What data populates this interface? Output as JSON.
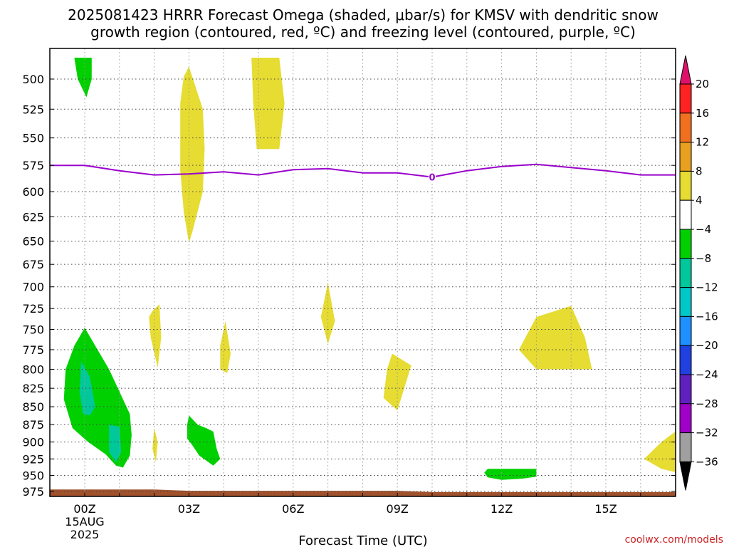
{
  "chart_data": {
    "type": "contour",
    "title_line1": "2025081423 HRRR Forecast Omega (shaded, μbar/s) for KMSV with dendritic snow",
    "title_line2": "growth region (contoured, red, ºC) and freezing level (contoured, purple, ºC)",
    "xlabel": "Forecast Time (UTC)",
    "credit": "coolwx.com/models",
    "x_ticks": [
      {
        "hour": 0,
        "label": "00Z",
        "sub1": "15AUG",
        "sub2": "2025"
      },
      {
        "hour": 3,
        "label": "03Z"
      },
      {
        "hour": 6,
        "label": "06Z"
      },
      {
        "hour": 9,
        "label": "09Z"
      },
      {
        "hour": 12,
        "label": "12Z"
      },
      {
        "hour": 15,
        "label": "15Z"
      }
    ],
    "xlim": [
      -1,
      17
    ],
    "ylim": [
      480,
      980
    ],
    "y_ticks": [
      500,
      525,
      550,
      575,
      600,
      625,
      650,
      675,
      700,
      725,
      750,
      775,
      800,
      825,
      850,
      875,
      900,
      925,
      950,
      975
    ],
    "grid": true,
    "freezing_level": {
      "color": "#9900cc",
      "label": "0",
      "label_hour": 10,
      "points": [
        [
          -1,
          575
        ],
        [
          0,
          575
        ],
        [
          1,
          580
        ],
        [
          2,
          584
        ],
        [
          3,
          583
        ],
        [
          4,
          581
        ],
        [
          5,
          584
        ],
        [
          6,
          579
        ],
        [
          7,
          578
        ],
        [
          8,
          582
        ],
        [
          9,
          582
        ],
        [
          10,
          586
        ],
        [
          11,
          580
        ],
        [
          12,
          576
        ],
        [
          13,
          574
        ],
        [
          14,
          577
        ],
        [
          15,
          580
        ],
        [
          16,
          584
        ],
        [
          17,
          584
        ]
      ]
    },
    "terrain": {
      "color": "#a0522d",
      "points": [
        [
          -1,
          972
        ],
        [
          2,
          972
        ],
        [
          3,
          974
        ],
        [
          9,
          974
        ],
        [
          10,
          976
        ],
        [
          17,
          976
        ]
      ]
    },
    "shaded_regions": [
      {
        "color": "#e6dc32",
        "points": [
          [
            4.8,
            483
          ],
          [
            5.6,
            483
          ],
          [
            5.75,
            520
          ],
          [
            5.6,
            560
          ],
          [
            4.95,
            560
          ],
          [
            4.85,
            520
          ]
        ]
      },
      {
        "color": "#e6dc32",
        "points": [
          [
            3.0,
            490
          ],
          [
            3.4,
            525
          ],
          [
            3.45,
            560
          ],
          [
            3.4,
            600
          ],
          [
            3.1,
            640
          ],
          [
            3.0,
            652
          ],
          [
            2.85,
            620
          ],
          [
            2.75,
            580
          ],
          [
            2.75,
            520
          ],
          [
            2.85,
            498
          ]
        ]
      },
      {
        "color": "#e6dc32",
        "points": [
          [
            1.95,
            728
          ],
          [
            2.15,
            720
          ],
          [
            2.2,
            760
          ],
          [
            2.1,
            798
          ],
          [
            1.9,
            760
          ],
          [
            1.85,
            735
          ]
        ]
      },
      {
        "color": "#e6dc32",
        "points": [
          [
            4.05,
            740
          ],
          [
            4.2,
            780
          ],
          [
            4.1,
            805
          ],
          [
            3.9,
            800
          ],
          [
            3.9,
            770
          ]
        ]
      },
      {
        "color": "#e6dc32",
        "points": [
          [
            7.0,
            695
          ],
          [
            7.2,
            740
          ],
          [
            7.0,
            768
          ],
          [
            6.8,
            735
          ]
        ]
      },
      {
        "color": "#e6dc32",
        "points": [
          [
            2.0,
            880
          ],
          [
            2.1,
            900
          ],
          [
            2.05,
            930
          ],
          [
            1.95,
            910
          ]
        ]
      },
      {
        "color": "#e6dc32",
        "points": [
          [
            8.85,
            780
          ],
          [
            9.4,
            795
          ],
          [
            9.0,
            855
          ],
          [
            8.6,
            838
          ],
          [
            8.7,
            800
          ]
        ]
      },
      {
        "color": "#e6dc32",
        "points": [
          [
            13.0,
            735
          ],
          [
            14.0,
            722
          ],
          [
            14.4,
            760
          ],
          [
            14.6,
            800
          ],
          [
            13.0,
            800
          ],
          [
            12.5,
            775
          ]
        ]
      },
      {
        "color": "#e6dc32",
        "points": [
          [
            17.0,
            885
          ],
          [
            17.0,
            945
          ],
          [
            16.6,
            940
          ],
          [
            16.1,
            925
          ],
          [
            16.6,
            900
          ]
        ]
      },
      {
        "color": "#00d000",
        "points": [
          [
            -0.3,
            483
          ],
          [
            0.2,
            483
          ],
          [
            0.2,
            500
          ],
          [
            0.05,
            515
          ],
          [
            -0.2,
            500
          ]
        ]
      },
      {
        "color": "#00d000",
        "points": [
          [
            0,
            748
          ],
          [
            0.7,
            800
          ],
          [
            1.3,
            860
          ],
          [
            1.35,
            890
          ],
          [
            1.3,
            920
          ],
          [
            1.1,
            938
          ],
          [
            0.9,
            935
          ],
          [
            0.6,
            918
          ],
          [
            0.1,
            900
          ],
          [
            -0.35,
            880
          ],
          [
            -0.6,
            840
          ],
          [
            -0.55,
            800
          ],
          [
            -0.3,
            770
          ]
        ]
      },
      {
        "color": "#00d000",
        "points": [
          [
            3.0,
            862
          ],
          [
            3.25,
            875
          ],
          [
            3.5,
            880
          ],
          [
            3.7,
            885
          ],
          [
            3.8,
            910
          ],
          [
            3.9,
            925
          ],
          [
            3.7,
            935
          ],
          [
            3.3,
            920
          ],
          [
            3.1,
            905
          ],
          [
            2.95,
            895
          ],
          [
            2.95,
            875
          ]
        ]
      },
      {
        "color": "#00d000",
        "points": [
          [
            11.6,
            940
          ],
          [
            12.6,
            940
          ],
          [
            13.0,
            940
          ],
          [
            13.0,
            952
          ],
          [
            12.6,
            955
          ],
          [
            12.0,
            957
          ],
          [
            11.6,
            953
          ],
          [
            11.5,
            946
          ]
        ]
      },
      {
        "color": "#00c89a",
        "points": [
          [
            -0.1,
            790
          ],
          [
            0.15,
            810
          ],
          [
            0.3,
            850
          ],
          [
            0.15,
            862
          ],
          [
            -0.05,
            860
          ],
          [
            -0.15,
            830
          ]
        ]
      },
      {
        "color": "#00c89a",
        "points": [
          [
            0.7,
            875
          ],
          [
            1.0,
            878
          ],
          [
            1.05,
            915
          ],
          [
            0.9,
            930
          ],
          [
            0.7,
            915
          ]
        ]
      }
    ],
    "colorbar": {
      "levels": [
        {
          "label": "20",
          "color": "#ff2222"
        },
        {
          "label": "16",
          "color": "#f07020"
        },
        {
          "label": "12",
          "color": "#e8a020"
        },
        {
          "label": "8",
          "color": "#e6dc32"
        },
        {
          "label": "4",
          "color": "#ffffff"
        },
        {
          "label": "−4",
          "color": "#00d000"
        },
        {
          "label": "−8",
          "color": "#00c89a"
        },
        {
          "label": "−12",
          "color": "#00c8c8"
        },
        {
          "label": "−16",
          "color": "#1e90ff"
        },
        {
          "label": "−20",
          "color": "#2040e0"
        },
        {
          "label": "−24",
          "color": "#6020c0"
        },
        {
          "label": "−28",
          "color": "#a000c8"
        },
        {
          "label": "−32",
          "color": "#a0a0a0"
        },
        {
          "label": "−36",
          "color": null
        }
      ],
      "top_arrow_color": "#e0106a",
      "bottom_arrow_color": "#000000"
    }
  }
}
